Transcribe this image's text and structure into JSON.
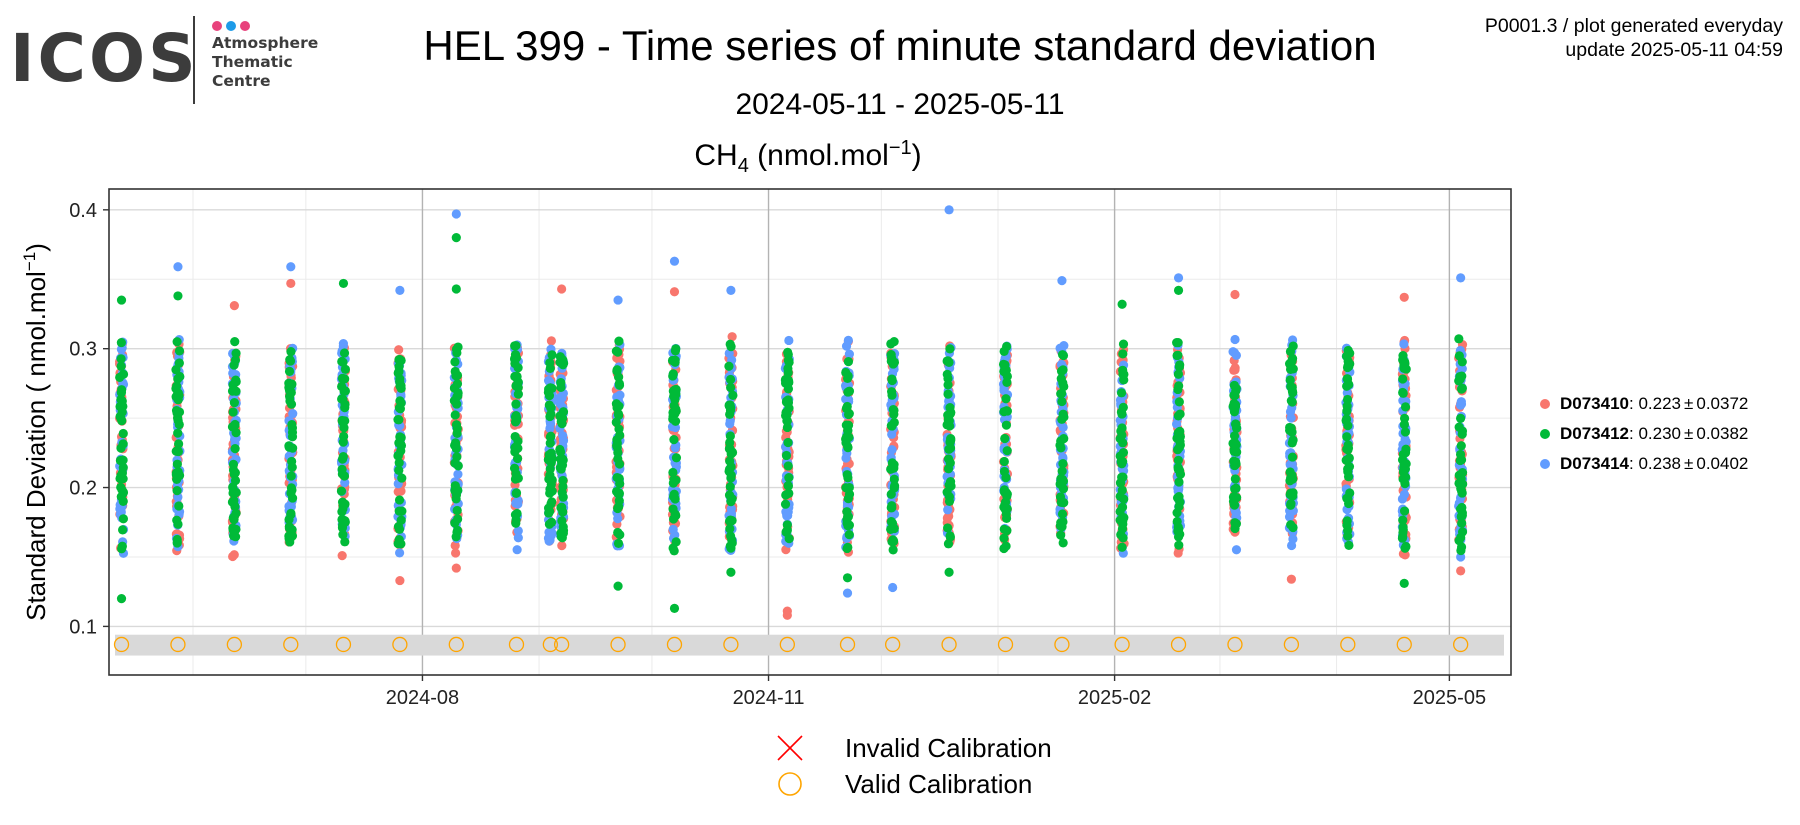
{
  "logo": {
    "word": "ICOS",
    "lines": [
      "Atmosphere",
      "Thematic",
      "Centre"
    ],
    "dot_colors": [
      "#e8427c",
      "#1e9be8",
      "#e8427c"
    ]
  },
  "header": {
    "title": "HEL 399 - Time series of minute standard deviation",
    "subtitle": "2024-05-11 - 2025-05-11",
    "species_main": "CH",
    "species_sub": "4",
    "species_unit_pre": " (nmol.mol",
    "species_unit_sup": "−1",
    "species_unit_post": ")",
    "info_line1": "P0001.3 / plot generated everyday",
    "info_line2": "update  2025-05-11 04:59"
  },
  "legend": {
    "items": [
      {
        "id": "D073410",
        "stats": "0.223",
        "pm": "±",
        "sd": "0.0372",
        "color": "#f8766d"
      },
      {
        "id": "D073412",
        "stats": "0.230",
        "pm": "±",
        "sd": "0.0382",
        "color": "#00ba38"
      },
      {
        "id": "D073414",
        "stats": "0.238",
        "pm": "±",
        "sd": "0.0402",
        "color": "#619cff"
      }
    ],
    "invalid_label": "Invalid Calibration",
    "valid_label": "Valid Calibration",
    "invalid_color": "#ff0000",
    "valid_color": "#ffa500"
  },
  "chart_data": {
    "type": "scatter",
    "ylabel_main": "Standard Deviation ( nmol.mol",
    "ylabel_sup": "−1",
    "ylabel_post": ")",
    "xlim": [
      "2024-05-11",
      "2025-05-11"
    ],
    "ylim": [
      0.065,
      0.415
    ],
    "x_ticks": [
      "2024-08",
      "2024-11",
      "2025-02",
      "2025-05"
    ],
    "x_tick_dates": [
      "2024-08-01",
      "2024-11-01",
      "2025-02-01",
      "2025-05-01"
    ],
    "y_ticks": [
      0.1,
      0.2,
      0.3,
      0.4
    ],
    "grid": true,
    "legend_position": "right",
    "calibration_band": [
      0.079,
      0.094
    ],
    "calibration_y": 0.087,
    "calibration_dates": [
      "2024-05-13",
      "2024-05-28",
      "2024-06-12",
      "2024-06-27",
      "2024-07-11",
      "2024-07-26",
      "2024-08-10",
      "2024-08-26",
      "2024-09-04",
      "2024-09-07",
      "2024-09-22",
      "2024-10-07",
      "2024-10-22",
      "2024-11-06",
      "2024-11-22",
      "2024-12-04",
      "2024-12-19",
      "2025-01-03",
      "2025-01-18",
      "2025-02-03",
      "2025-02-18",
      "2025-03-05",
      "2025-03-20",
      "2025-04-04",
      "2025-04-19",
      "2025-05-04"
    ],
    "series": [
      {
        "name": "D073410",
        "color": "#f8766d",
        "extremes": [
          {
            "date": "2024-06-12",
            "sd": 0.331
          },
          {
            "date": "2024-06-27",
            "sd": 0.347
          },
          {
            "date": "2024-07-26",
            "sd": 0.133
          },
          {
            "date": "2024-08-10",
            "sd": 0.142
          },
          {
            "date": "2024-09-07",
            "sd": 0.343
          },
          {
            "date": "2024-10-07",
            "sd": 0.341
          },
          {
            "date": "2024-11-06",
            "sd": 0.111
          },
          {
            "date": "2024-11-06",
            "sd": 0.108
          },
          {
            "date": "2025-03-05",
            "sd": 0.339
          },
          {
            "date": "2025-03-20",
            "sd": 0.134
          },
          {
            "date": "2025-04-19",
            "sd": 0.337
          },
          {
            "date": "2025-05-04",
            "sd": 0.14
          }
        ]
      },
      {
        "name": "D073412",
        "color": "#00ba38",
        "extremes": [
          {
            "date": "2024-05-13",
            "sd": 0.335
          },
          {
            "date": "2024-05-13",
            "sd": 0.12
          },
          {
            "date": "2024-05-28",
            "sd": 0.338
          },
          {
            "date": "2024-07-11",
            "sd": 0.347
          },
          {
            "date": "2024-08-10",
            "sd": 0.38
          },
          {
            "date": "2024-08-10",
            "sd": 0.343
          },
          {
            "date": "2024-09-22",
            "sd": 0.129
          },
          {
            "date": "2024-10-07",
            "sd": 0.113
          },
          {
            "date": "2024-10-22",
            "sd": 0.139
          },
          {
            "date": "2024-11-22",
            "sd": 0.135
          },
          {
            "date": "2024-12-19",
            "sd": 0.139
          },
          {
            "date": "2025-02-03",
            "sd": 0.332
          },
          {
            "date": "2025-02-18",
            "sd": 0.342
          },
          {
            "date": "2025-04-19",
            "sd": 0.131
          }
        ]
      },
      {
        "name": "D073414",
        "color": "#619cff",
        "extremes": [
          {
            "date": "2024-05-28",
            "sd": 0.359
          },
          {
            "date": "2024-06-27",
            "sd": 0.359
          },
          {
            "date": "2024-07-26",
            "sd": 0.342
          },
          {
            "date": "2024-08-10",
            "sd": 0.397
          },
          {
            "date": "2024-09-22",
            "sd": 0.335
          },
          {
            "date": "2024-10-07",
            "sd": 0.363
          },
          {
            "date": "2024-10-22",
            "sd": 0.342
          },
          {
            "date": "2024-11-22",
            "sd": 0.124
          },
          {
            "date": "2024-12-04",
            "sd": 0.128
          },
          {
            "date": "2024-12-19",
            "sd": 0.4
          },
          {
            "date": "2025-01-18",
            "sd": 0.349
          },
          {
            "date": "2025-02-18",
            "sd": 0.351
          },
          {
            "date": "2025-05-04",
            "sd": 0.351
          },
          {
            "date": "2025-05-04",
            "sd": 0.15
          }
        ]
      }
    ]
  }
}
